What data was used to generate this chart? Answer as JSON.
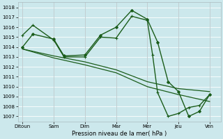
{
  "background_color": "#cce8ec",
  "grid_color": "#ffffff",
  "line_color": "#1a5c1a",
  "x_labels": [
    "Ditoun",
    "Sam",
    "Dim",
    "Mar",
    "Mer",
    "Jeu",
    "Ven"
  ],
  "xlabel": "Pression niveau de la mer( hPa )",
  "ylim": [
    1006.5,
    1018.5
  ],
  "yticks": [
    1007,
    1008,
    1009,
    1010,
    1011,
    1012,
    1013,
    1014,
    1015,
    1016,
    1017,
    1018
  ],
  "x_day_positions": [
    0,
    1,
    2,
    3,
    4,
    5,
    6
  ],
  "lines": [
    {
      "x": [
        0,
        0.33,
        1.0,
        1.33,
        2.0,
        2.5,
        3.0,
        3.5,
        4.0,
        4.33,
        4.67,
        5.0,
        5.33,
        5.67,
        6.0
      ],
      "y": [
        1014.0,
        1015.3,
        1014.8,
        1013.1,
        1013.2,
        1015.2,
        1016.0,
        1017.7,
        1016.8,
        1014.5,
        1010.5,
        1009.5,
        1007.0,
        1007.5,
        1009.2
      ],
      "marker": "D",
      "markersize": 2.0,
      "linewidth": 1.0,
      "zorder": 3
    },
    {
      "x": [
        0,
        0.33,
        1.0,
        1.33,
        2.0,
        2.5,
        3.0,
        3.5,
        4.0,
        4.17,
        4.33,
        4.67,
        5.0,
        5.33,
        5.67,
        6.0
      ],
      "y": [
        1015.2,
        1016.2,
        1014.7,
        1013.0,
        1013.0,
        1015.0,
        1014.9,
        1017.1,
        1016.7,
        1013.2,
        1009.4,
        1007.0,
        1007.3,
        1007.9,
        1008.1,
        1009.2
      ],
      "marker": "+",
      "markersize": 3.5,
      "linewidth": 1.0,
      "zorder": 3
    },
    {
      "x": [
        0,
        1,
        2,
        3,
        4,
        5,
        6
      ],
      "y": [
        1013.8,
        1013.1,
        1012.5,
        1011.7,
        1010.5,
        1009.8,
        1009.5
      ],
      "marker": null,
      "markersize": 0,
      "linewidth": 0.9,
      "zorder": 2
    },
    {
      "x": [
        0,
        1,
        2,
        3,
        4,
        5,
        6
      ],
      "y": [
        1013.8,
        1012.9,
        1012.2,
        1011.4,
        1010.0,
        1009.2,
        1008.5
      ],
      "marker": null,
      "markersize": 0,
      "linewidth": 0.9,
      "zorder": 2
    }
  ]
}
